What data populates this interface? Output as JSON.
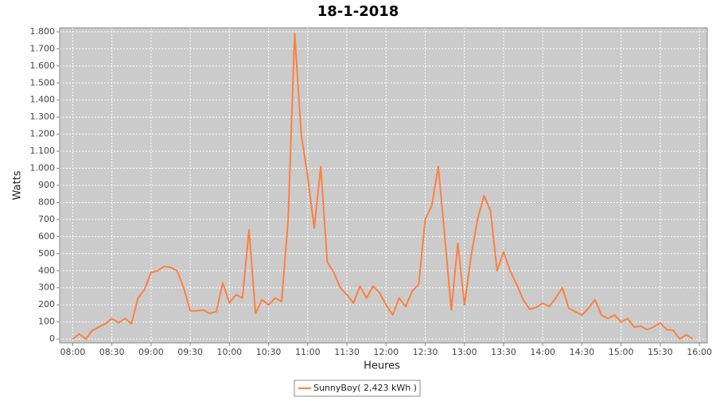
{
  "chart_data": {
    "type": "line",
    "title": "18-1-2018",
    "xlabel": "Heures",
    "ylabel": "Watts",
    "x": [
      "08:00",
      "08:05",
      "08:10",
      "08:15",
      "08:20",
      "08:25",
      "08:30",
      "08:35",
      "08:40",
      "08:45",
      "08:50",
      "08:55",
      "09:00",
      "09:05",
      "09:10",
      "09:15",
      "09:20",
      "09:25",
      "09:30",
      "09:35",
      "09:40",
      "09:45",
      "09:50",
      "09:55",
      "10:00",
      "10:05",
      "10:10",
      "10:15",
      "10:20",
      "10:25",
      "10:30",
      "10:35",
      "10:40",
      "10:45",
      "10:50",
      "10:55",
      "11:00",
      "11:05",
      "11:10",
      "11:15",
      "11:20",
      "11:25",
      "11:30",
      "11:35",
      "11:40",
      "11:45",
      "11:50",
      "11:55",
      "12:00",
      "12:05",
      "12:10",
      "12:15",
      "12:20",
      "12:25",
      "12:30",
      "12:35",
      "12:40",
      "12:45",
      "12:50",
      "12:55",
      "13:00",
      "13:05",
      "13:10",
      "13:15",
      "13:20",
      "13:25",
      "13:30",
      "13:35",
      "13:40",
      "13:45",
      "13:50",
      "13:55",
      "14:00",
      "14:05",
      "14:10",
      "14:15",
      "14:20",
      "14:25",
      "14:30",
      "14:35",
      "14:40",
      "14:45",
      "14:50",
      "14:55",
      "15:00",
      "15:05",
      "15:10",
      "15:15",
      "15:20",
      "15:25",
      "15:30",
      "15:35",
      "15:40",
      "15:45",
      "15:50",
      "15:55"
    ],
    "series": [
      {
        "name": "SunnyBoy( 2,423 kWh )",
        "color": "#ff7f3f",
        "values": [
          0,
          30,
          0,
          50,
          70,
          90,
          120,
          95,
          120,
          90,
          240,
          290,
          390,
          400,
          425,
          420,
          400,
          300,
          165,
          165,
          170,
          150,
          160,
          330,
          210,
          260,
          240,
          640,
          150,
          230,
          200,
          240,
          220,
          700,
          1790,
          1200,
          950,
          650,
          1010,
          450,
          390,
          300,
          260,
          210,
          310,
          240,
          310,
          270,
          200,
          140,
          240,
          190,
          280,
          320,
          700,
          780,
          1010,
          600,
          170,
          560,
          200,
          480,
          700,
          840,
          750,
          400,
          510,
          400,
          320,
          230,
          175,
          185,
          210,
          190,
          240,
          300,
          180,
          160,
          140,
          180,
          230,
          140,
          120,
          140,
          100,
          120,
          70,
          75,
          55,
          70,
          95,
          55,
          50,
          0,
          25,
          0
        ]
      }
    ],
    "xlim": [
      "07:50",
      "16:06"
    ],
    "xticks": [
      "08:00",
      "08:30",
      "09:00",
      "09:30",
      "10:00",
      "10:30",
      "11:00",
      "11:30",
      "12:00",
      "12:30",
      "13:00",
      "13:30",
      "14:00",
      "14:30",
      "15:00",
      "15:30",
      "16:00"
    ],
    "ylim": [
      -23,
      1823
    ],
    "yticks": [
      0,
      100,
      200,
      300,
      400,
      500,
      600,
      700,
      800,
      900,
      {
        "value": 1000,
        "label": "1.000"
      },
      {
        "value": 1100,
        "label": "1.100"
      },
      {
        "value": 1200,
        "label": "1.200"
      },
      {
        "value": 1300,
        "label": "1.300"
      },
      {
        "value": 1400,
        "label": "1.400"
      },
      {
        "value": 1500,
        "label": "1.500"
      },
      {
        "value": 1600,
        "label": "1.600"
      },
      {
        "value": 1700,
        "label": "1.700"
      },
      {
        "value": 1800,
        "label": "1.800"
      }
    ],
    "grid": true
  }
}
